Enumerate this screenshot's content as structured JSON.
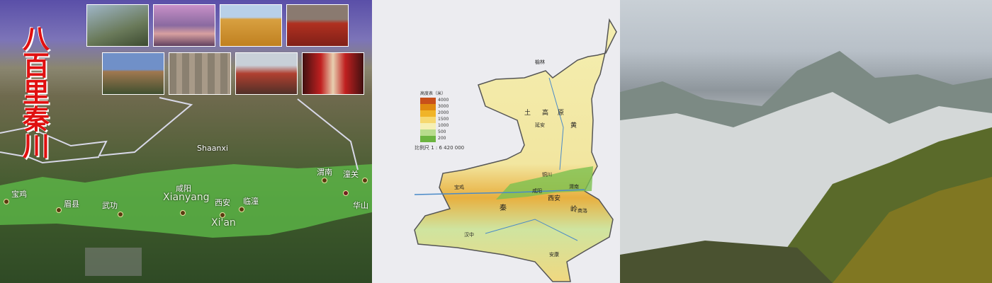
{
  "left_panel": {
    "title": "八百里秦川",
    "region_label": "Shaanxi",
    "cities": [
      {
        "name": "宝鸡"
      },
      {
        "name": "眉县"
      },
      {
        "name": "武功"
      },
      {
        "name": "咸阳",
        "en": "Xianyang"
      },
      {
        "name": "西安",
        "en": "Xi'an"
      },
      {
        "name": "临潼"
      },
      {
        "name": "渭南"
      },
      {
        "name": "潼关"
      },
      {
        "name": "华山"
      }
    ],
    "thumbnails": [
      "mountain-peaks",
      "river-sunset",
      "wheat-field",
      "red-peppers",
      "big-wild-goose-pagoda",
      "terracotta-warriors",
      "festival-crowd",
      "opera-performers"
    ]
  },
  "map_panel": {
    "legend_title": "高度表（米）",
    "legend_values": [
      "4000",
      "3000",
      "2000",
      "1500",
      "1000",
      "500",
      "200"
    ],
    "legend_colors": [
      "#c8501a",
      "#e08a10",
      "#f0b428",
      "#f6d870",
      "#f6f0b4",
      "#b8dc8c",
      "#6cb440"
    ],
    "scale": "比例尺  1 : 6 420 000",
    "labels": [
      "榆林",
      "延安",
      "铜川",
      "宝鸡",
      "咸阳",
      "西安",
      "渭南",
      "商洛",
      "汉中",
      "安康",
      "秦",
      "岭",
      "黄",
      "土",
      "高",
      "原"
    ]
  },
  "right_panel": {
    "subject": "snow-covered-mountains-autumn-forest"
  }
}
